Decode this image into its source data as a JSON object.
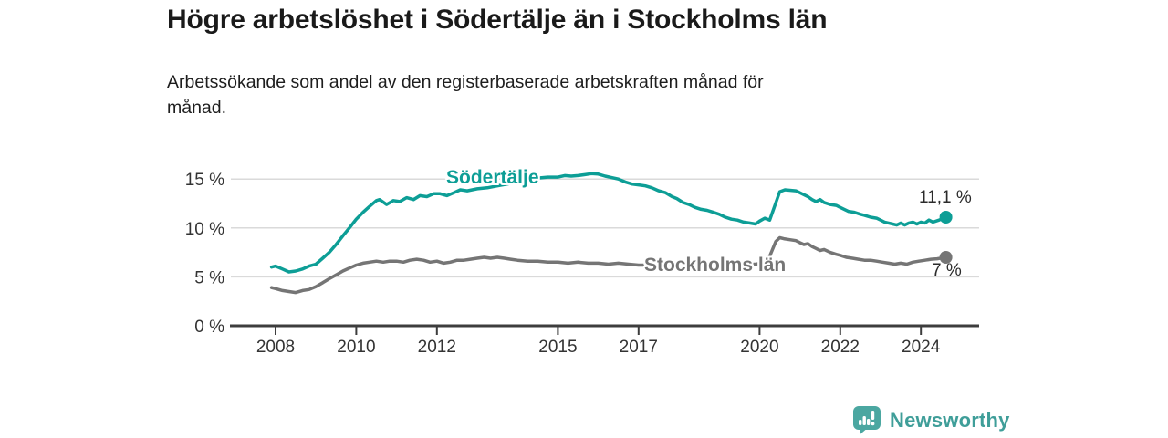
{
  "title": "Högre arbetslöshet i Södertälje än i Stockholms län",
  "subtitle": "Arbetssökande som andel av den registerbaserade arbetskraften månad för\nmånad.",
  "chart_data": {
    "type": "line",
    "title": "Högre arbetslöshet i Södertälje än i Stockholms län",
    "xlabel": "",
    "ylabel": "Arbetssökande som andel av den registerbaserade arbetskraften",
    "unit": "%",
    "grid": "horizontal",
    "legend_position": "inline-labels",
    "x_range": [
      2008,
      2024.62
    ],
    "ylim": [
      0,
      16.5
    ],
    "x_ticks": [
      2008,
      2010,
      2012,
      2015,
      2017,
      2020,
      2022,
      2024
    ],
    "y_tick_values": [
      0,
      5,
      10,
      15
    ],
    "y_ticks": [
      "0 %",
      "5 %",
      "10 %",
      "15 %"
    ],
    "series": [
      {
        "name": "Södertälje",
        "color": "#0d9e96",
        "end_label": "11,1 %",
        "end_value": 11.1,
        "points": [
          [
            2007.9,
            6.0
          ],
          [
            2008.0,
            6.1
          ],
          [
            2008.17,
            5.8
          ],
          [
            2008.33,
            5.5
          ],
          [
            2008.5,
            5.6
          ],
          [
            2008.67,
            5.8
          ],
          [
            2008.83,
            6.1
          ],
          [
            2009.0,
            6.3
          ],
          [
            2009.17,
            6.9
          ],
          [
            2009.33,
            7.5
          ],
          [
            2009.5,
            8.3
          ],
          [
            2009.67,
            9.2
          ],
          [
            2009.83,
            10.0
          ],
          [
            2010.0,
            10.9
          ],
          [
            2010.17,
            11.6
          ],
          [
            2010.33,
            12.2
          ],
          [
            2010.5,
            12.8
          ],
          [
            2010.58,
            12.9
          ],
          [
            2010.75,
            12.4
          ],
          [
            2010.92,
            12.8
          ],
          [
            2011.08,
            12.7
          ],
          [
            2011.25,
            13.1
          ],
          [
            2011.42,
            12.9
          ],
          [
            2011.58,
            13.3
          ],
          [
            2011.75,
            13.2
          ],
          [
            2011.92,
            13.5
          ],
          [
            2012.08,
            13.5
          ],
          [
            2012.25,
            13.3
          ],
          [
            2012.42,
            13.6
          ],
          [
            2012.58,
            13.9
          ],
          [
            2012.75,
            13.8
          ],
          [
            2013.0,
            14.0
          ],
          [
            2013.25,
            14.1
          ],
          [
            2013.5,
            14.3
          ],
          [
            2013.75,
            14.5
          ],
          [
            2014.0,
            14.7
          ],
          [
            2014.25,
            14.9
          ],
          [
            2014.5,
            15.1
          ],
          [
            2014.75,
            15.2
          ],
          [
            2015.0,
            15.2
          ],
          [
            2015.17,
            15.35
          ],
          [
            2015.33,
            15.3
          ],
          [
            2015.5,
            15.35
          ],
          [
            2015.67,
            15.45
          ],
          [
            2015.83,
            15.55
          ],
          [
            2016.0,
            15.5
          ],
          [
            2016.17,
            15.3
          ],
          [
            2016.33,
            15.15
          ],
          [
            2016.5,
            15.0
          ],
          [
            2016.67,
            14.7
          ],
          [
            2016.83,
            14.5
          ],
          [
            2017.0,
            14.4
          ],
          [
            2017.17,
            14.3
          ],
          [
            2017.33,
            14.1
          ],
          [
            2017.5,
            13.8
          ],
          [
            2017.67,
            13.6
          ],
          [
            2017.83,
            13.2
          ],
          [
            2017.95,
            13.0
          ],
          [
            2018.1,
            12.6
          ],
          [
            2018.25,
            12.4
          ],
          [
            2018.4,
            12.1
          ],
          [
            2018.55,
            11.9
          ],
          [
            2018.7,
            11.8
          ],
          [
            2018.85,
            11.6
          ],
          [
            2019.0,
            11.4
          ],
          [
            2019.15,
            11.1
          ],
          [
            2019.3,
            10.9
          ],
          [
            2019.45,
            10.8
          ],
          [
            2019.6,
            10.6
          ],
          [
            2019.75,
            10.5
          ],
          [
            2019.9,
            10.4
          ],
          [
            2020.0,
            10.7
          ],
          [
            2020.13,
            11.0
          ],
          [
            2020.25,
            10.8
          ],
          [
            2020.38,
            12.3
          ],
          [
            2020.5,
            13.7
          ],
          [
            2020.63,
            13.9
          ],
          [
            2020.75,
            13.85
          ],
          [
            2020.9,
            13.8
          ],
          [
            2021.05,
            13.5
          ],
          [
            2021.2,
            13.2
          ],
          [
            2021.3,
            12.9
          ],
          [
            2021.4,
            12.7
          ],
          [
            2021.5,
            12.9
          ],
          [
            2021.6,
            12.6
          ],
          [
            2021.75,
            12.4
          ],
          [
            2021.9,
            12.3
          ],
          [
            2022.0,
            12.1
          ],
          [
            2022.1,
            11.9
          ],
          [
            2022.2,
            11.7
          ],
          [
            2022.35,
            11.6
          ],
          [
            2022.5,
            11.4
          ],
          [
            2022.6,
            11.3
          ],
          [
            2022.75,
            11.1
          ],
          [
            2022.9,
            11.0
          ],
          [
            2023.0,
            10.8
          ],
          [
            2023.1,
            10.6
          ],
          [
            2023.2,
            10.5
          ],
          [
            2023.3,
            10.4
          ],
          [
            2023.4,
            10.3
          ],
          [
            2023.5,
            10.5
          ],
          [
            2023.6,
            10.3
          ],
          [
            2023.7,
            10.5
          ],
          [
            2023.8,
            10.6
          ],
          [
            2023.9,
            10.4
          ],
          [
            2024.0,
            10.6
          ],
          [
            2024.1,
            10.5
          ],
          [
            2024.2,
            10.8
          ],
          [
            2024.3,
            10.6
          ],
          [
            2024.45,
            10.8
          ],
          [
            2024.62,
            11.1
          ]
        ]
      },
      {
        "name": "Stockholms län",
        "color": "#757575",
        "end_label": "7 %",
        "end_value": 7.0,
        "points": [
          [
            2007.9,
            3.9
          ],
          [
            2008.0,
            3.8
          ],
          [
            2008.17,
            3.6
          ],
          [
            2008.33,
            3.5
          ],
          [
            2008.5,
            3.4
          ],
          [
            2008.67,
            3.6
          ],
          [
            2008.83,
            3.7
          ],
          [
            2009.0,
            4.0
          ],
          [
            2009.17,
            4.4
          ],
          [
            2009.33,
            4.8
          ],
          [
            2009.5,
            5.2
          ],
          [
            2009.67,
            5.6
          ],
          [
            2009.83,
            5.9
          ],
          [
            2010.0,
            6.2
          ],
          [
            2010.17,
            6.4
          ],
          [
            2010.33,
            6.5
          ],
          [
            2010.5,
            6.6
          ],
          [
            2010.67,
            6.5
          ],
          [
            2010.83,
            6.6
          ],
          [
            2011.0,
            6.6
          ],
          [
            2011.17,
            6.5
          ],
          [
            2011.33,
            6.7
          ],
          [
            2011.5,
            6.8
          ],
          [
            2011.67,
            6.7
          ],
          [
            2011.83,
            6.5
          ],
          [
            2012.0,
            6.6
          ],
          [
            2012.17,
            6.4
          ],
          [
            2012.33,
            6.5
          ],
          [
            2012.5,
            6.7
          ],
          [
            2012.67,
            6.7
          ],
          [
            2012.83,
            6.8
          ],
          [
            2013.0,
            6.9
          ],
          [
            2013.17,
            7.0
          ],
          [
            2013.33,
            6.9
          ],
          [
            2013.5,
            7.0
          ],
          [
            2013.67,
            6.9
          ],
          [
            2013.83,
            6.8
          ],
          [
            2014.0,
            6.7
          ],
          [
            2014.25,
            6.6
          ],
          [
            2014.5,
            6.6
          ],
          [
            2014.75,
            6.5
          ],
          [
            2015.0,
            6.5
          ],
          [
            2015.25,
            6.4
          ],
          [
            2015.5,
            6.5
          ],
          [
            2015.75,
            6.4
          ],
          [
            2016.0,
            6.4
          ],
          [
            2016.25,
            6.3
          ],
          [
            2016.5,
            6.4
          ],
          [
            2016.75,
            6.3
          ],
          [
            2017.0,
            6.2
          ],
          [
            2017.25,
            6.2
          ],
          [
            2017.5,
            6.3
          ],
          [
            2017.75,
            6.2
          ],
          [
            2018.0,
            6.1
          ],
          [
            2018.25,
            6.1
          ],
          [
            2018.5,
            6.2
          ],
          [
            2018.75,
            6.1
          ],
          [
            2019.0,
            6.2
          ],
          [
            2019.25,
            6.2
          ],
          [
            2019.5,
            6.2
          ],
          [
            2019.75,
            6.3
          ],
          [
            2019.9,
            6.3
          ],
          [
            2020.05,
            6.4
          ],
          [
            2020.2,
            6.6
          ],
          [
            2020.3,
            7.6
          ],
          [
            2020.4,
            8.6
          ],
          [
            2020.5,
            9.0
          ],
          [
            2020.6,
            8.9
          ],
          [
            2020.75,
            8.8
          ],
          [
            2020.9,
            8.7
          ],
          [
            2021.0,
            8.5
          ],
          [
            2021.1,
            8.3
          ],
          [
            2021.2,
            8.4
          ],
          [
            2021.3,
            8.1
          ],
          [
            2021.4,
            7.9
          ],
          [
            2021.5,
            7.7
          ],
          [
            2021.6,
            7.8
          ],
          [
            2021.75,
            7.5
          ],
          [
            2021.9,
            7.3
          ],
          [
            2022.0,
            7.2
          ],
          [
            2022.15,
            7.0
          ],
          [
            2022.3,
            6.9
          ],
          [
            2022.45,
            6.8
          ],
          [
            2022.6,
            6.7
          ],
          [
            2022.75,
            6.7
          ],
          [
            2022.9,
            6.6
          ],
          [
            2023.05,
            6.5
          ],
          [
            2023.2,
            6.4
          ],
          [
            2023.35,
            6.3
          ],
          [
            2023.5,
            6.4
          ],
          [
            2023.65,
            6.3
          ],
          [
            2023.8,
            6.5
          ],
          [
            2023.95,
            6.6
          ],
          [
            2024.1,
            6.7
          ],
          [
            2024.25,
            6.8
          ],
          [
            2024.4,
            6.85
          ],
          [
            2024.62,
            7.0
          ]
        ]
      }
    ],
    "colors": {
      "axis": "#3d3d3d",
      "grid": "#dadada",
      "tick_label": "#333333",
      "end_label_text": "#2b2b2b"
    }
  },
  "logo": {
    "text": "Newsworthy",
    "color": "#3f9e99",
    "icon": "bar-chart-bubble-icon",
    "icon_color": "#4ba7a1"
  }
}
